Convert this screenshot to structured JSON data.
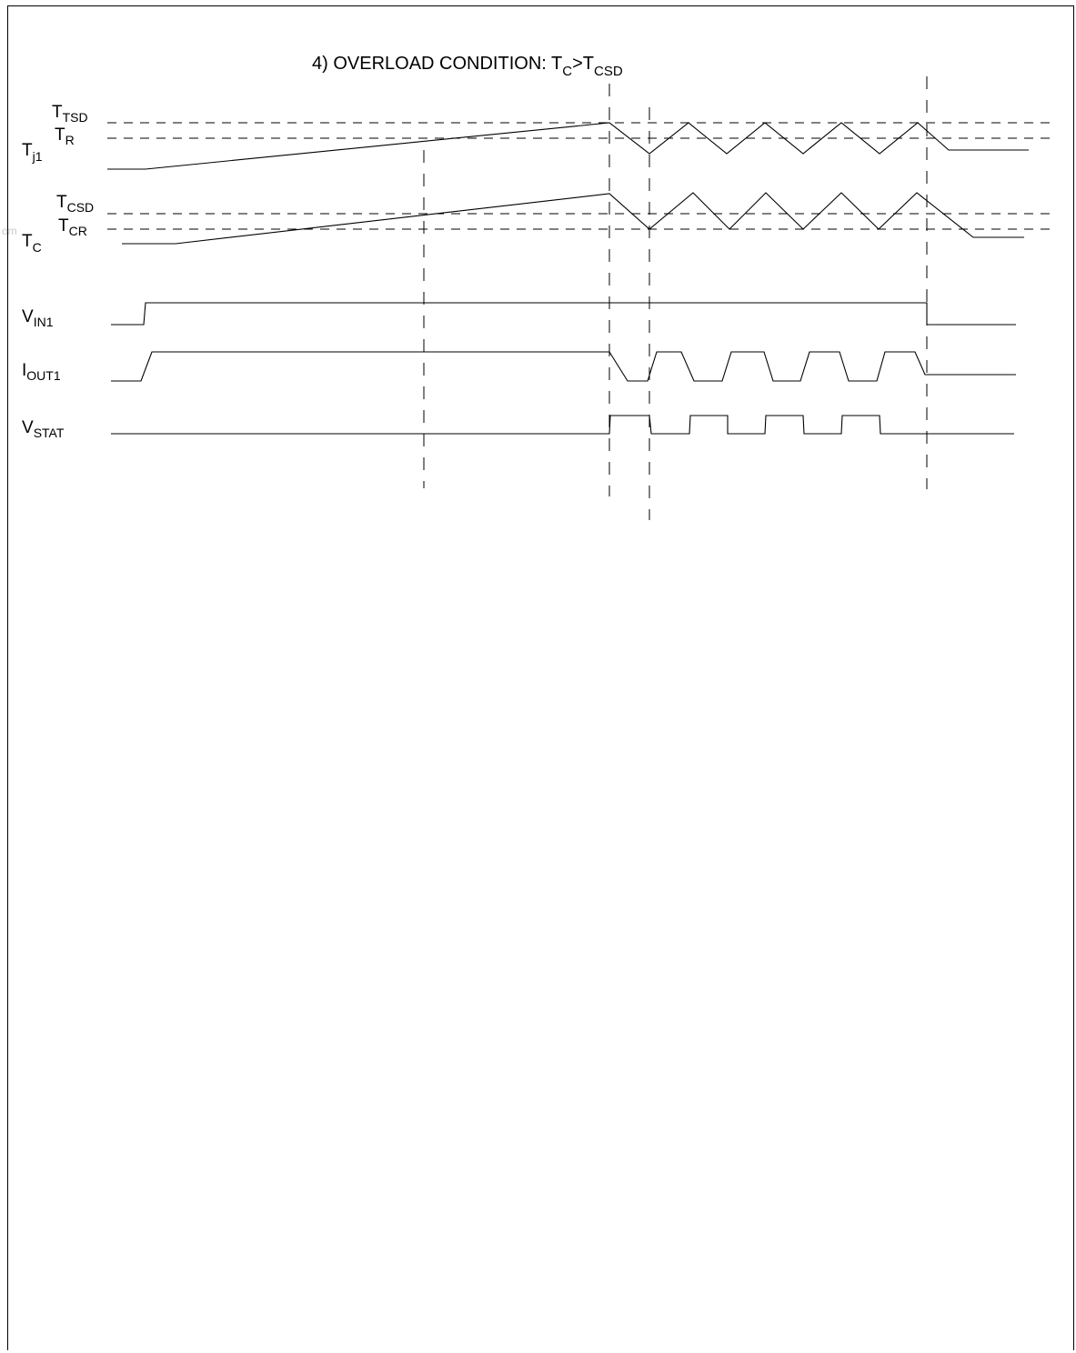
{
  "title": {
    "prefix": "4) OVERLOAD CONDITION: T",
    "sub1": "C",
    "mid": ">T",
    "sub2": "CSD"
  },
  "labels": {
    "tj1": {
      "main": "T",
      "sub": "j1"
    },
    "ttsd": {
      "main": "T",
      "sub": "TSD"
    },
    "tr": {
      "main": "T",
      "sub": "R"
    },
    "tc": {
      "main": "T",
      "sub": "C"
    },
    "tcsd": {
      "main": "T",
      "sub": "CSD"
    },
    "tcr": {
      "main": "T",
      "sub": "CR"
    },
    "vin1": {
      "main": "V",
      "sub": "IN1"
    },
    "iout1": {
      "main": "I",
      "sub": "OUT1"
    },
    "vstat": {
      "main": "V",
      "sub": "STAT"
    }
  },
  "watermark": "om"
}
